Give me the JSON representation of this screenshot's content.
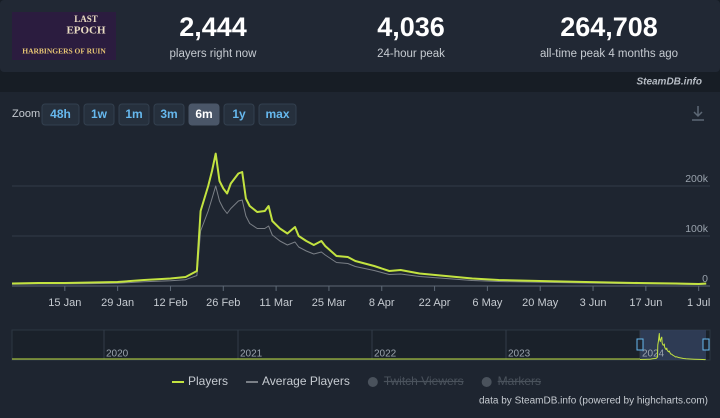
{
  "logo": [
    "LAST",
    "EPOCH",
    "HARBINGERS OF RUIN"
  ],
  "stats": [
    {
      "value": "2,444",
      "label": "players right now"
    },
    {
      "value": "4,036",
      "label": "24-hour peak"
    },
    {
      "value": "264,708",
      "label": "all-time peak 4 months ago"
    }
  ],
  "source": "SteamDB.info",
  "zoom": {
    "label": "Zoom",
    "buttons": [
      "48h",
      "1w",
      "1m",
      "3m",
      "6m",
      "1y",
      "max"
    ],
    "active_index": 4
  },
  "navigator_labels": [
    "2020",
    "2021",
    "2022",
    "2023",
    "2024"
  ],
  "credits": "data by SteamDB.info (powered by highcharts.com)",
  "chart_data": {
    "type": "line",
    "x": [
      "2024-01-01",
      "2024-01-08",
      "2024-01-15",
      "2024-01-22",
      "2024-01-29",
      "2024-02-05",
      "2024-02-12",
      "2024-02-16",
      "2024-02-19",
      "2024-02-20",
      "2024-02-21",
      "2024-02-22",
      "2024-02-23",
      "2024-02-24",
      "2024-02-25",
      "2024-02-26",
      "2024-02-27",
      "2024-02-28",
      "2024-03-01",
      "2024-03-02",
      "2024-03-03",
      "2024-03-04",
      "2024-03-06",
      "2024-03-08",
      "2024-03-09",
      "2024-03-10",
      "2024-03-12",
      "2024-03-14",
      "2024-03-16",
      "2024-03-17",
      "2024-03-19",
      "2024-03-21",
      "2024-03-23",
      "2024-03-24",
      "2024-03-27",
      "2024-03-30",
      "2024-04-01",
      "2024-04-06",
      "2024-04-10",
      "2024-04-13",
      "2024-04-18",
      "2024-04-25",
      "2024-05-02",
      "2024-05-09",
      "2024-05-20",
      "2024-06-01",
      "2024-06-15",
      "2024-06-25",
      "2024-07-01",
      "2024-07-03"
    ],
    "series": [
      {
        "name": "Players",
        "color": "#c3e340",
        "values": [
          5000,
          6000,
          6000,
          7000,
          8000,
          12000,
          15000,
          18000,
          30000,
          150000,
          175000,
          200000,
          230000,
          264708,
          210000,
          195000,
          185000,
          205000,
          225000,
          228000,
          175000,
          160000,
          148000,
          150000,
          160000,
          130000,
          115000,
          105000,
          118000,
          100000,
          90000,
          82000,
          90000,
          80000,
          60000,
          58000,
          50000,
          40000,
          30000,
          32000,
          25000,
          20000,
          15000,
          12000,
          10000,
          8000,
          6000,
          5000,
          4000,
          5000
        ]
      },
      {
        "name": "Average Players",
        "color": "#7a7f86",
        "values": [
          3500,
          4200,
          4200,
          4900,
          5600,
          8400,
          10500,
          12600,
          21000,
          110000,
          130000,
          150000,
          175000,
          200000,
          170000,
          155000,
          145000,
          155000,
          170000,
          172000,
          140000,
          125000,
          115000,
          115000,
          120000,
          102000,
          90000,
          82000,
          88000,
          78000,
          70000,
          64000,
          68000,
          62000,
          47000,
          45000,
          39000,
          31000,
          23000,
          24000,
          19000,
          15000,
          11000,
          9000,
          7500,
          6000,
          4500,
          3800,
          3000,
          3700
        ]
      }
    ],
    "hidden_series_names": [
      "Twitch Viewers",
      "Markers"
    ],
    "xlim": [
      "2024-01-01",
      "2024-07-04"
    ],
    "xticks": [
      {
        "value": "2024-01-15",
        "label": "15 Jan"
      },
      {
        "value": "2024-01-29",
        "label": "29 Jan"
      },
      {
        "value": "2024-02-12",
        "label": "12 Feb"
      },
      {
        "value": "2024-02-26",
        "label": "26 Feb"
      },
      {
        "value": "2024-03-11",
        "label": "11 Mar"
      },
      {
        "value": "2024-03-25",
        "label": "25 Mar"
      },
      {
        "value": "2024-04-08",
        "label": "8 Apr"
      },
      {
        "value": "2024-04-22",
        "label": "22 Apr"
      },
      {
        "value": "2024-05-06",
        "label": "6 May"
      },
      {
        "value": "2024-05-20",
        "label": "20 May"
      },
      {
        "value": "2024-06-03",
        "label": "3 Jun"
      },
      {
        "value": "2024-06-17",
        "label": "17 Jun"
      },
      {
        "value": "2024-07-01",
        "label": "1 Jul"
      }
    ],
    "ylim": [
      0,
      300000
    ],
    "yticks": [
      0,
      {
        "value": 100000,
        "label": "100k"
      },
      {
        "value": 200000,
        "label": "200k"
      }
    ],
    "grid": true
  }
}
